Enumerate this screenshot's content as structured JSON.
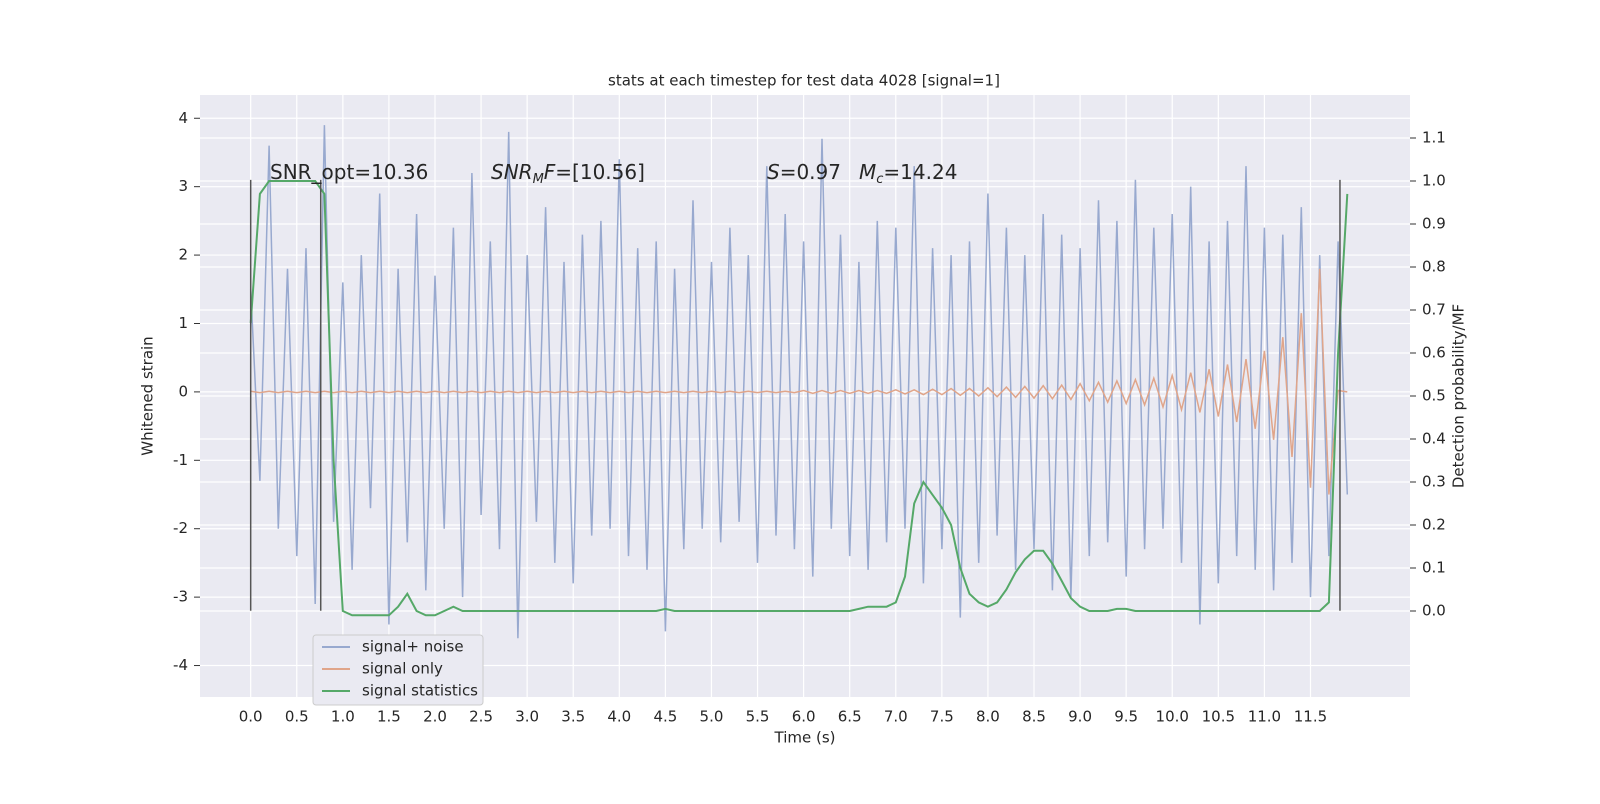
{
  "chart_data": {
    "type": "line",
    "title": "stats at each timestep for test data 4028 [signal=1]",
    "xlabel": "Time (s)",
    "ylabel": "Whitened strain",
    "y2label": "Detection probability/MF",
    "grid": true,
    "legend": "lower left",
    "xlim": [
      -0.55,
      12.58
    ],
    "ylim": [
      -4.46,
      4.34
    ],
    "y2lim": [
      -0.2,
      1.2
    ],
    "xticks": [
      {
        "value": 0,
        "label": "0.0"
      },
      0.5,
      {
        "value": 1,
        "label": "1.0"
      },
      1.5,
      {
        "value": 2,
        "label": "2.0"
      },
      2.5,
      {
        "value": 3,
        "label": "3.0"
      },
      3.5,
      {
        "value": 4,
        "label": "4.0"
      },
      4.5,
      {
        "value": 5,
        "label": "5.0"
      },
      5.5,
      {
        "value": 6,
        "label": "6.0"
      },
      6.5,
      {
        "value": 7,
        "label": "7.0"
      },
      7.5,
      {
        "value": 8,
        "label": "8.0"
      },
      8.5,
      {
        "value": 9,
        "label": "9.0"
      },
      9.5,
      {
        "value": 10,
        "label": "10.0"
      },
      10.5,
      {
        "value": 11,
        "label": "11.0"
      },
      11.5
    ],
    "yticks": [
      -4,
      -3,
      -2,
      -1,
      0,
      1,
      2,
      3,
      4
    ],
    "y2ticks": [
      {
        "value": 0,
        "label": "0.0"
      },
      0.1,
      0.2,
      0.3,
      0.4,
      0.5,
      0.6,
      0.7,
      0.8,
      0.9,
      {
        "value": 1,
        "label": "1.0"
      },
      1.1
    ],
    "x": [
      0.0,
      0.1,
      0.2,
      0.3,
      0.4,
      0.5,
      0.6,
      0.7,
      0.8,
      0.9,
      1.0,
      1.1,
      1.2,
      1.3,
      1.4,
      1.5,
      1.6,
      1.7,
      1.8,
      1.9,
      2.0,
      2.1,
      2.2,
      2.3,
      2.4,
      2.5,
      2.6,
      2.7,
      2.8,
      2.9,
      3.0,
      3.1,
      3.2,
      3.3,
      3.4,
      3.5,
      3.6,
      3.7,
      3.8,
      3.9,
      4.0,
      4.1,
      4.2,
      4.3,
      4.4,
      4.5,
      4.6,
      4.7,
      4.8,
      4.9,
      5.0,
      5.1,
      5.2,
      5.3,
      5.4,
      5.5,
      5.6,
      5.7,
      5.8,
      5.9,
      6.0,
      6.1,
      6.2,
      6.3,
      6.4,
      6.5,
      6.6,
      6.7,
      6.8,
      6.9,
      7.0,
      7.1,
      7.2,
      7.3,
      7.4,
      7.5,
      7.6,
      7.7,
      7.8,
      7.9,
      8.0,
      8.1,
      8.2,
      8.3,
      8.4,
      8.5,
      8.6,
      8.7,
      8.8,
      8.9,
      9.0,
      9.1,
      9.2,
      9.3,
      9.4,
      9.5,
      9.6,
      9.7,
      9.8,
      9.9,
      10.0,
      10.1,
      10.2,
      10.3,
      10.4,
      10.5,
      10.6,
      10.7,
      10.8,
      10.9,
      11.0,
      11.1,
      11.2,
      11.3,
      11.4,
      11.5,
      11.6,
      11.7,
      11.8,
      11.9
    ],
    "series": [
      {
        "name": "signal+ noise",
        "color": "#98a9cf",
        "values": [
          1.5,
          -1.3,
          3.6,
          -2.0,
          1.8,
          -2.4,
          2.1,
          -3.1,
          3.9,
          -1.9,
          1.6,
          -2.6,
          2.0,
          -1.7,
          2.9,
          -3.4,
          1.8,
          -2.2,
          2.6,
          -2.9,
          1.7,
          -2.0,
          2.4,
          -3.0,
          3.2,
          -1.8,
          2.2,
          -2.3,
          3.8,
          -3.6,
          2.0,
          -1.9,
          2.7,
          -2.5,
          1.9,
          -2.8,
          2.3,
          -2.1,
          2.5,
          -2.0,
          3.4,
          -2.4,
          2.1,
          -2.6,
          2.2,
          -3.5,
          1.8,
          -2.3,
          2.8,
          -2.0,
          1.9,
          -2.2,
          2.4,
          -1.9,
          2.0,
          -2.5,
          3.3,
          -2.1,
          2.6,
          -2.3,
          2.2,
          -2.7,
          3.7,
          -2.0,
          2.3,
          -2.4,
          1.9,
          -2.6,
          2.5,
          -2.2,
          2.4,
          -2.0,
          3.3,
          -2.8,
          2.1,
          -2.3,
          2.0,
          -3.3,
          2.2,
          -2.5,
          2.9,
          -2.1,
          2.4,
          -2.6,
          2.0,
          -2.3,
          2.6,
          -2.9,
          2.3,
          -3.0,
          2.1,
          -2.4,
          2.8,
          -2.2,
          2.5,
          -2.7,
          3.1,
          -2.3,
          2.4,
          -2.0,
          2.6,
          -2.5,
          3.0,
          -3.4,
          2.2,
          -2.8,
          2.5,
          -2.4,
          3.3,
          -2.6,
          2.4,
          -2.9,
          2.3,
          -2.5,
          2.7,
          -3.0,
          2.0,
          -2.4,
          2.2,
          -1.5
        ]
      },
      {
        "name": "signal only",
        "color": "#e0a58a",
        "values": [
          0.01,
          -0.01,
          0.01,
          -0.01,
          0.01,
          -0.01,
          0.01,
          -0.01,
          0.01,
          -0.01,
          0.01,
          -0.01,
          0.01,
          -0.01,
          0.01,
          -0.01,
          0.01,
          -0.01,
          0.01,
          -0.01,
          0.01,
          -0.01,
          0.01,
          -0.01,
          0.01,
          -0.01,
          0.01,
          -0.01,
          0.01,
          -0.01,
          0.01,
          -0.01,
          0.01,
          -0.01,
          0.01,
          -0.01,
          0.01,
          -0.01,
          0.01,
          -0.01,
          0.01,
          -0.01,
          0.01,
          -0.01,
          0.01,
          -0.01,
          0.01,
          -0.01,
          0.01,
          -0.01,
          0.01,
          -0.01,
          0.01,
          -0.01,
          0.01,
          -0.01,
          0.01,
          -0.01,
          0.01,
          -0.01,
          0.02,
          -0.02,
          0.02,
          -0.02,
          0.02,
          -0.02,
          0.02,
          -0.02,
          0.02,
          -0.02,
          0.03,
          -0.03,
          0.03,
          -0.04,
          0.04,
          -0.04,
          0.05,
          -0.05,
          0.05,
          -0.06,
          0.06,
          -0.07,
          0.07,
          -0.08,
          0.08,
          -0.09,
          0.09,
          -0.1,
          0.1,
          -0.11,
          0.12,
          -0.13,
          0.14,
          -0.15,
          0.16,
          -0.17,
          0.18,
          -0.19,
          0.2,
          -0.22,
          0.24,
          -0.26,
          0.28,
          -0.3,
          0.33,
          -0.36,
          0.4,
          -0.44,
          0.48,
          -0.54,
          0.6,
          -0.7,
          0.8,
          -0.95,
          1.15,
          -1.4,
          1.8,
          -1.5,
          0.02,
          0.0
        ]
      },
      {
        "name": "signal statistics",
        "color": "#55a868",
        "axis": "y2",
        "values": [
          0.67,
          0.97,
          1.0,
          1.0,
          1.0,
          1.0,
          1.0,
          1.0,
          0.97,
          0.35,
          0.0,
          -0.01,
          -0.01,
          -0.01,
          -0.01,
          -0.01,
          0.01,
          0.04,
          0.0,
          -0.01,
          -0.01,
          0.0,
          0.01,
          0.0,
          0.0,
          0.0,
          0.0,
          0.0,
          0.0,
          0.0,
          0,
          0,
          0,
          0,
          0,
          0,
          0,
          0,
          0,
          0,
          0.0,
          0.0,
          0.0,
          0.0,
          0.0,
          0.005,
          0.0,
          0.0,
          0.0,
          0.0,
          0,
          0,
          0,
          0,
          0,
          0,
          0,
          0,
          0,
          0,
          0,
          0,
          0,
          0,
          0,
          0,
          0.005,
          0.01,
          0.01,
          0.01,
          0.02,
          0.08,
          0.25,
          0.3,
          0.27,
          0.24,
          0.2,
          0.1,
          0.04,
          0.02,
          0.01,
          0.02,
          0.05,
          0.09,
          0.12,
          0.14,
          0.14,
          0.11,
          0.07,
          0.03,
          0.01,
          0.0,
          0.0,
          0.0,
          0.005,
          0.005,
          0.0,
          0.0,
          0.0,
          0.0,
          0,
          0,
          0,
          0,
          0,
          0,
          0,
          0,
          0,
          0,
          0,
          0,
          0,
          0,
          0,
          0,
          0.0,
          0.02,
          0.6,
          0.97
        ]
      }
    ],
    "vlines": {
      "x": [
        0.0,
        0.76,
        11.82
      ],
      "ymin": -3.2,
      "ymax": 3.1,
      "color": "#555555"
    },
    "annotations": [
      [
        {
          "text": "SNR_opt=10.36"
        }
      ],
      [
        {
          "text": "SNR",
          "italic": true
        },
        {
          "text": "M",
          "italic": true,
          "sub": true
        },
        {
          "text": "F",
          "italic": true
        },
        {
          "text": "=[10.56]"
        }
      ],
      [
        {
          "text": "S",
          "italic": true
        },
        {
          "text": "=0.97"
        }
      ],
      [
        {
          "text": "M",
          "italic": true
        },
        {
          "text": "c",
          "italic": true,
          "sub": true
        },
        {
          "text": "=14.24"
        }
      ]
    ]
  }
}
